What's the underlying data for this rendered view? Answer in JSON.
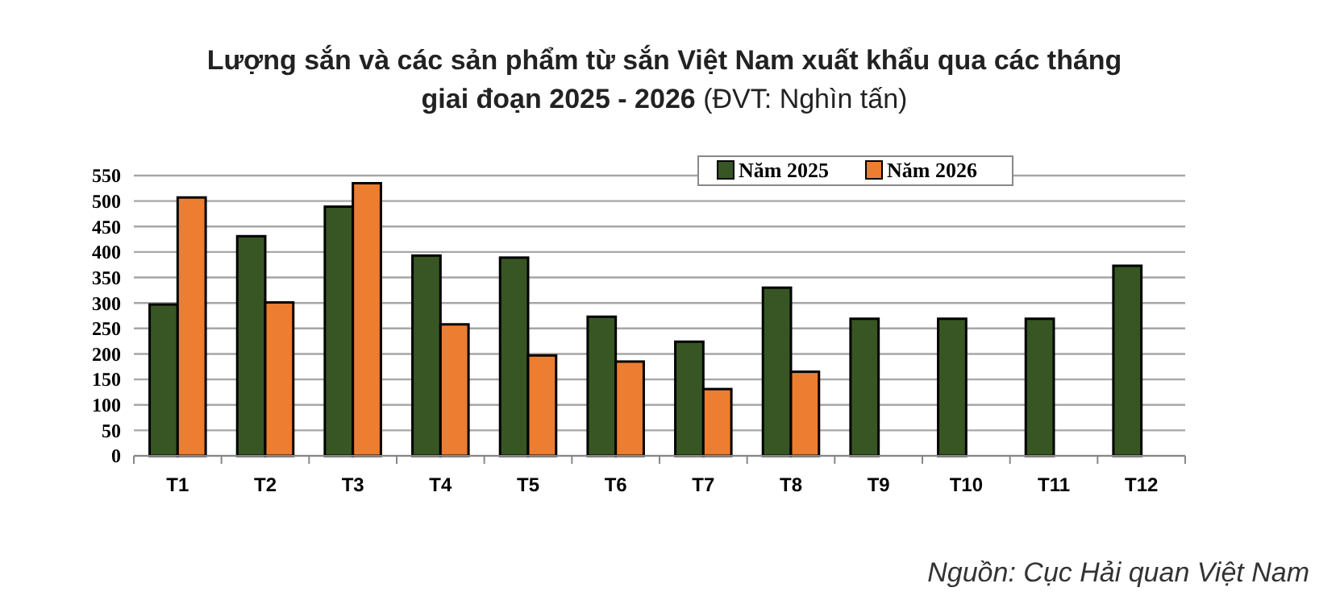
{
  "chart_data": {
    "type": "bar",
    "title": "Lượng sắn và các sản phẩm từ sắn Việt Nam xuất khẩu qua các tháng giai đoạn 2025 - 2026  (ĐVT: Nghìn tấn)",
    "categories": [
      "T1",
      "T2",
      "T3",
      "T4",
      "T5",
      "T6",
      "T7",
      "T8",
      "T9",
      "T10",
      "T11",
      "T12"
    ],
    "series": [
      {
        "name": "Năm 2025",
        "color": "#375623",
        "values": [
          297,
          431,
          489,
          393,
          389,
          273,
          224,
          330,
          269,
          269,
          269,
          373
        ]
      },
      {
        "name": "Năm 2026",
        "color": "#ed7d31",
        "values": [
          507,
          301,
          535,
          258,
          197,
          185,
          131,
          165,
          null,
          null,
          null,
          null
        ]
      }
    ],
    "ylim": [
      0,
      550
    ],
    "yticks": [
      0,
      50,
      100,
      150,
      200,
      250,
      300,
      350,
      400,
      450,
      500,
      550
    ],
    "grid": "y",
    "legend": "top",
    "annotations": [
      "Nguồn: Cục Hải quan Việt Nam"
    ]
  }
}
